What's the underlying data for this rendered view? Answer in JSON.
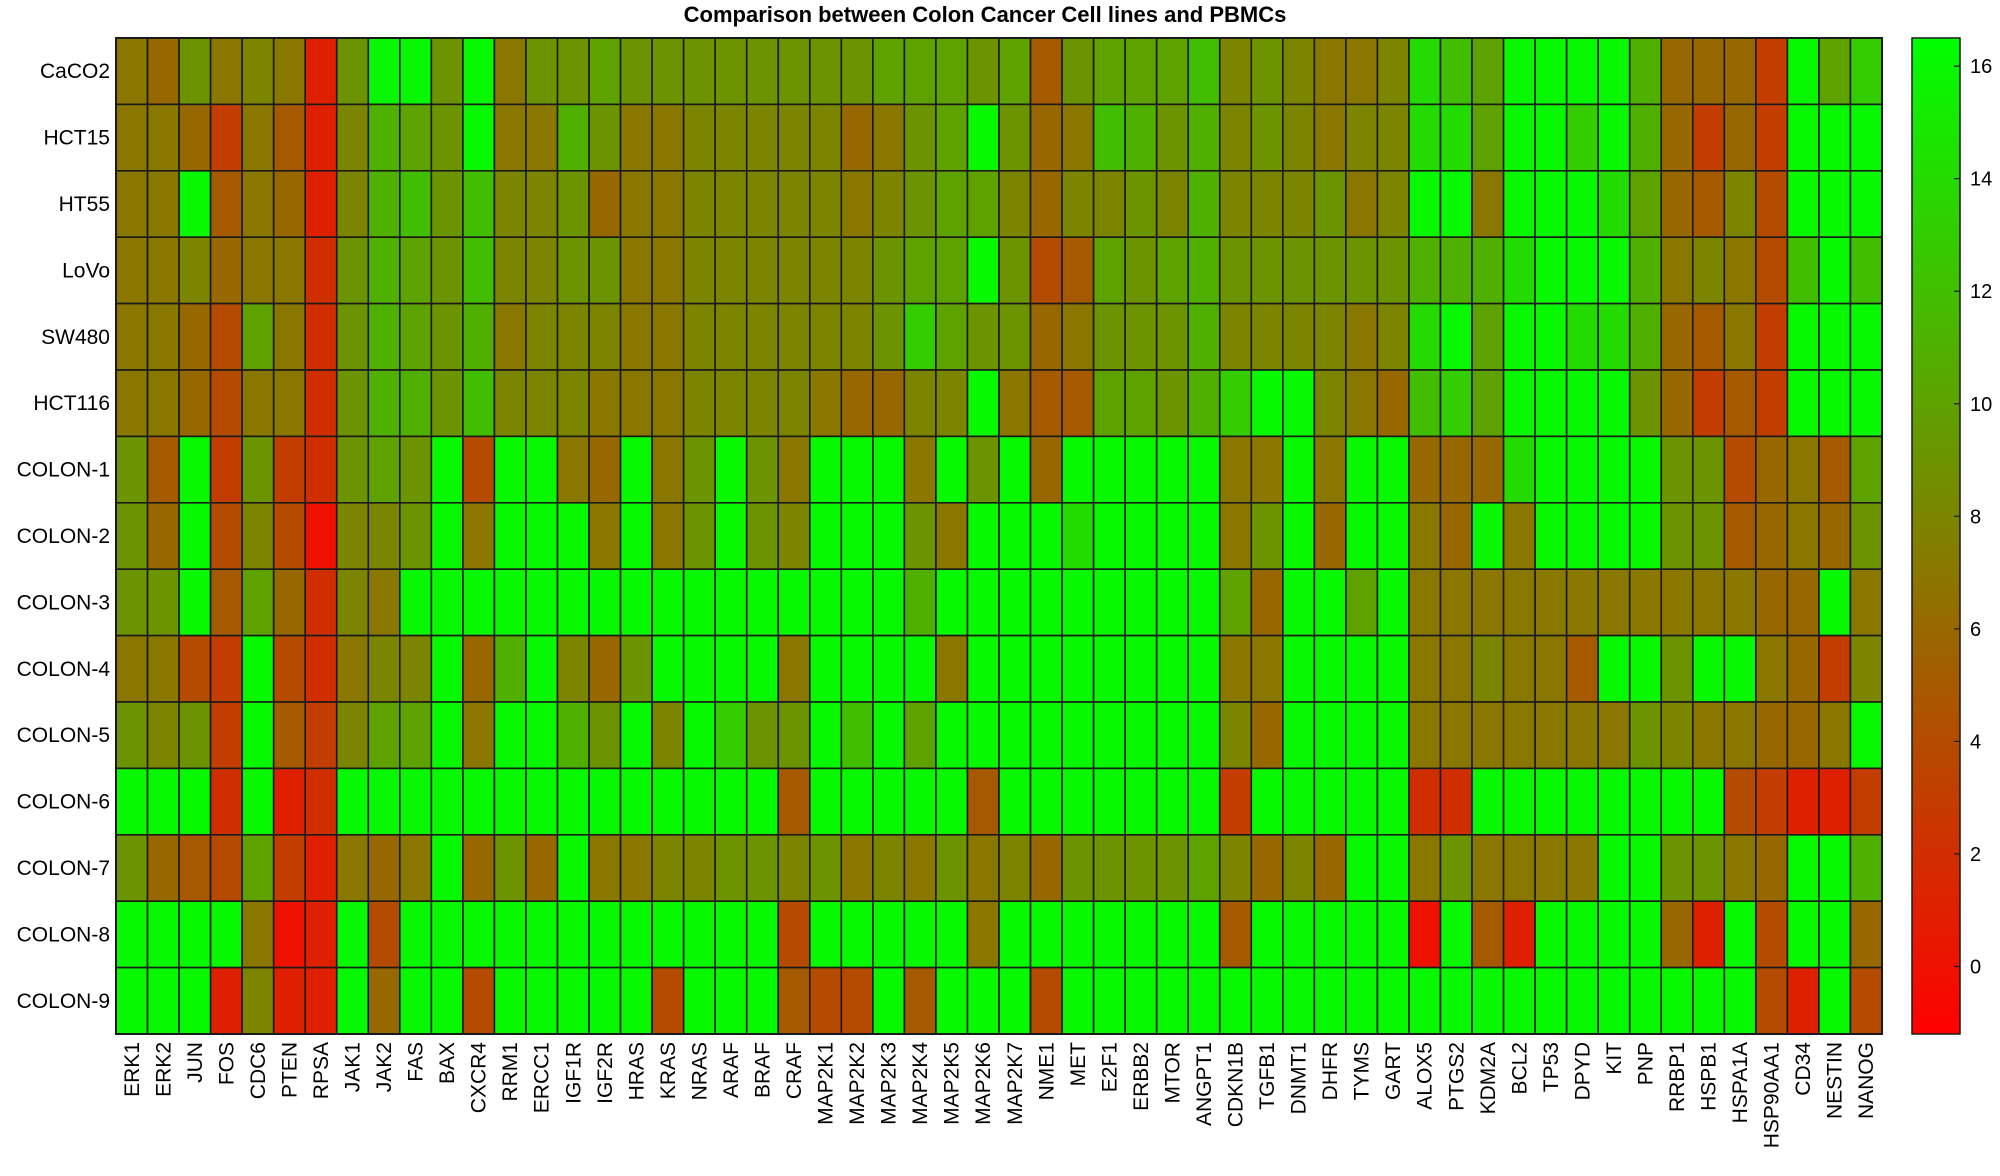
{
  "chart_data": {
    "type": "heatmap",
    "title": "Comparison between Colon Cancer Cell lines and PBMCs",
    "rows": [
      "CaCO2",
      "HCT15",
      "HT55",
      "LoVo",
      "SW480",
      "HCT116",
      "COLON-1",
      "COLON-2",
      "COLON-3",
      "COLON-4",
      "COLON-5",
      "COLON-6",
      "COLON-7",
      "COLON-8",
      "COLON-9"
    ],
    "columns": [
      "ERK1",
      "ERK2",
      "JUN",
      "FOS",
      "CDC6",
      "PTEN",
      "RPSA",
      "JAK1",
      "JAK2",
      "FAS",
      "BAX",
      "CXCR4",
      "RRM1",
      "ERCC1",
      "IGF1R",
      "IGF2R",
      "HRAS",
      "KRAS",
      "NRAS",
      "ARAF",
      "BRAF",
      "CRAF",
      "MAP2K1",
      "MAP2K2",
      "MAP2K3",
      "MAP2K4",
      "MAP2K5",
      "MAP2K6",
      "MAP2K7",
      "NME1",
      "MET",
      "E2F1",
      "ERBB2",
      "MTOR",
      "ANGPT1",
      "CDKN1B",
      "TGFB1",
      "DNMT1",
      "DHFR",
      "TYMS",
      "GART",
      "ALOX5",
      "PTGS2",
      "KDM2A",
      "BCL2",
      "TP53",
      "DPYD",
      "KIT",
      "PNP",
      "RRBP1",
      "HSPB1",
      "HSPA1A",
      "HSP90AA1",
      "CD34",
      "NESTIN",
      "NANOG"
    ],
    "values": [
      [
        7,
        6,
        9,
        7,
        8,
        7,
        1,
        9,
        16,
        16,
        9,
        16,
        7,
        9,
        9,
        10,
        9,
        9,
        9,
        9,
        9,
        9,
        9,
        9,
        10,
        10,
        10,
        9,
        10,
        5,
        9,
        10,
        10,
        10,
        12,
        8,
        9,
        8,
        7,
        7,
        8,
        14,
        12,
        10,
        16,
        16,
        16,
        16,
        11,
        6,
        6,
        6,
        3,
        16,
        10,
        13
      ],
      [
        7,
        7,
        6,
        3,
        7,
        5,
        1,
        8,
        11,
        10,
        9,
        16,
        7,
        7,
        11,
        9,
        7,
        7,
        8,
        8,
        8,
        8,
        8,
        6,
        7,
        9,
        10,
        16,
        9,
        6,
        7,
        12,
        11,
        9,
        11,
        8,
        9,
        8,
        7,
        8,
        8,
        14,
        14,
        10,
        16,
        16,
        13,
        16,
        11,
        6,
        3,
        6,
        3,
        16,
        16,
        16
      ],
      [
        7,
        7,
        16,
        5,
        7,
        6,
        1,
        8,
        11,
        12,
        9,
        12,
        8,
        8,
        9,
        6,
        7,
        7,
        8,
        8,
        8,
        8,
        8,
        7,
        8,
        9,
        10,
        10,
        8,
        6,
        8,
        8,
        9,
        8,
        11,
        8,
        8,
        8,
        9,
        7,
        8,
        16,
        16,
        7,
        16,
        16,
        16,
        14,
        10,
        6,
        5,
        8,
        4,
        16,
        16,
        16
      ],
      [
        7,
        7,
        8,
        6,
        7,
        7,
        2,
        9,
        11,
        10,
        9,
        12,
        8,
        8,
        9,
        9,
        7,
        7,
        8,
        8,
        8,
        8,
        8,
        8,
        9,
        10,
        10,
        16,
        9,
        4,
        5,
        10,
        9,
        10,
        11,
        9,
        9,
        9,
        9,
        9,
        9,
        11,
        11,
        11,
        14,
        16,
        16,
        16,
        11,
        7,
        8,
        7,
        4,
        12,
        16,
        12
      ],
      [
        7,
        7,
        6,
        4,
        10,
        7,
        2,
        9,
        11,
        10,
        9,
        11,
        7,
        8,
        8,
        8,
        7,
        7,
        8,
        8,
        8,
        8,
        8,
        8,
        9,
        13,
        10,
        9,
        9,
        6,
        7,
        9,
        9,
        9,
        11,
        8,
        8,
        8,
        8,
        7,
        8,
        14,
        16,
        10,
        16,
        16,
        14,
        14,
        11,
        6,
        5,
        7,
        3,
        16,
        16,
        16
      ],
      [
        7,
        7,
        6,
        4,
        7,
        7,
        2,
        9,
        11,
        11,
        9,
        12,
        8,
        8,
        8,
        7,
        7,
        7,
        8,
        8,
        8,
        8,
        7,
        6,
        6,
        8,
        8,
        16,
        7,
        5,
        5,
        10,
        10,
        9,
        11,
        13,
        16,
        16,
        8,
        7,
        6,
        12,
        13,
        10,
        16,
        16,
        16,
        16,
        9,
        6,
        3,
        5,
        3,
        16,
        16,
        16
      ],
      [
        9,
        5,
        16,
        3,
        9,
        3,
        2,
        9,
        10,
        9,
        16,
        4,
        16,
        16,
        7,
        6,
        16,
        7,
        9,
        16,
        9,
        7,
        16,
        16,
        16,
        7,
        16,
        9,
        16,
        6,
        16,
        16,
        16,
        16,
        16,
        7,
        7,
        16,
        7,
        16,
        16,
        6,
        6,
        6,
        14,
        16,
        16,
        16,
        16,
        9,
        9,
        4,
        6,
        7,
        5,
        10
      ],
      [
        9,
        6,
        16,
        4,
        8,
        4,
        0,
        8,
        8,
        9,
        16,
        7,
        16,
        16,
        16,
        7,
        16,
        7,
        9,
        16,
        9,
        8,
        16,
        16,
        16,
        9,
        7,
        16,
        16,
        16,
        14,
        16,
        16,
        16,
        16,
        7,
        9,
        16,
        6,
        16,
        16,
        7,
        6,
        16,
        7,
        16,
        16,
        16,
        16,
        9,
        9,
        5,
        6,
        7,
        6,
        9
      ],
      [
        9,
        9,
        16,
        5,
        10,
        6,
        2,
        8,
        7,
        16,
        16,
        16,
        16,
        16,
        16,
        16,
        16,
        16,
        16,
        16,
        16,
        16,
        16,
        16,
        16,
        11,
        16,
        16,
        16,
        16,
        16,
        16,
        16,
        16,
        16,
        10,
        6,
        16,
        16,
        10,
        16,
        7,
        7,
        7,
        7,
        7,
        7,
        7,
        7,
        7,
        7,
        7,
        6,
        6,
        16,
        7
      ],
      [
        7,
        7,
        4,
        3,
        16,
        4,
        2,
        7,
        8,
        8,
        16,
        6,
        11,
        16,
        8,
        6,
        9,
        16,
        16,
        16,
        16,
        7,
        16,
        16,
        16,
        16,
        7,
        16,
        16,
        16,
        16,
        16,
        16,
        16,
        16,
        7,
        7,
        16,
        16,
        16,
        16,
        7,
        7,
        8,
        7,
        7,
        5,
        16,
        16,
        9,
        16,
        16,
        7,
        6,
        3,
        8
      ],
      [
        9,
        8,
        9,
        3,
        16,
        5,
        3,
        8,
        10,
        10,
        16,
        7,
        16,
        16,
        11,
        9,
        16,
        8,
        16,
        13,
        9,
        9,
        16,
        12,
        16,
        10,
        16,
        16,
        16,
        16,
        16,
        16,
        16,
        16,
        16,
        8,
        6,
        16,
        16,
        16,
        16,
        7,
        7,
        7,
        7,
        7,
        7,
        7,
        9,
        8,
        7,
        7,
        6,
        6,
        7,
        16
      ],
      [
        16,
        16,
        16,
        2,
        16,
        1,
        2,
        16,
        16,
        16,
        16,
        16,
        16,
        16,
        16,
        16,
        16,
        16,
        16,
        16,
        16,
        5,
        16,
        16,
        16,
        16,
        16,
        5,
        16,
        16,
        16,
        16,
        16,
        16,
        16,
        3,
        16,
        16,
        16,
        16,
        16,
        2,
        2,
        16,
        16,
        16,
        16,
        16,
        16,
        16,
        16,
        4,
        3,
        1,
        1,
        3
      ],
      [
        9,
        6,
        5,
        4,
        10,
        3,
        1,
        7,
        6,
        7,
        16,
        6,
        9,
        6,
        16,
        7,
        7,
        8,
        8,
        9,
        9,
        8,
        9,
        7,
        8,
        7,
        9,
        7,
        8,
        6,
        9,
        9,
        9,
        9,
        10,
        8,
        6,
        8,
        6,
        16,
        16,
        7,
        9,
        7,
        7,
        7,
        7,
        16,
        16,
        9,
        9,
        7,
        6,
        16,
        16,
        11
      ],
      [
        16,
        16,
        16,
        16,
        7,
        0,
        1,
        16,
        4,
        16,
        16,
        16,
        16,
        16,
        16,
        16,
        16,
        16,
        16,
        16,
        16,
        4,
        16,
        16,
        16,
        16,
        16,
        7,
        16,
        16,
        16,
        16,
        16,
        16,
        16,
        5,
        16,
        16,
        16,
        16,
        16,
        0,
        16,
        5,
        1,
        16,
        16,
        16,
        16,
        6,
        1,
        16,
        4,
        16,
        16,
        6
      ],
      [
        16,
        16,
        16,
        1,
        8,
        1,
        1,
        16,
        6,
        16,
        16,
        4,
        16,
        16,
        16,
        16,
        16,
        4,
        16,
        16,
        16,
        5,
        4,
        4,
        16,
        5,
        16,
        16,
        16,
        4,
        16,
        16,
        16,
        16,
        16,
        16,
        16,
        16,
        16,
        16,
        16,
        16,
        16,
        16,
        16,
        16,
        16,
        16,
        16,
        16,
        16,
        16,
        4,
        1,
        16,
        4
      ]
    ],
    "colorbar": {
      "min": -1.2,
      "max": 16.5,
      "ticks": [
        0,
        2,
        4,
        6,
        8,
        10,
        12,
        14,
        16
      ]
    },
    "colormap": {
      "low": "#ff0000",
      "mid": "#808000",
      "high": "#00ff00"
    }
  }
}
